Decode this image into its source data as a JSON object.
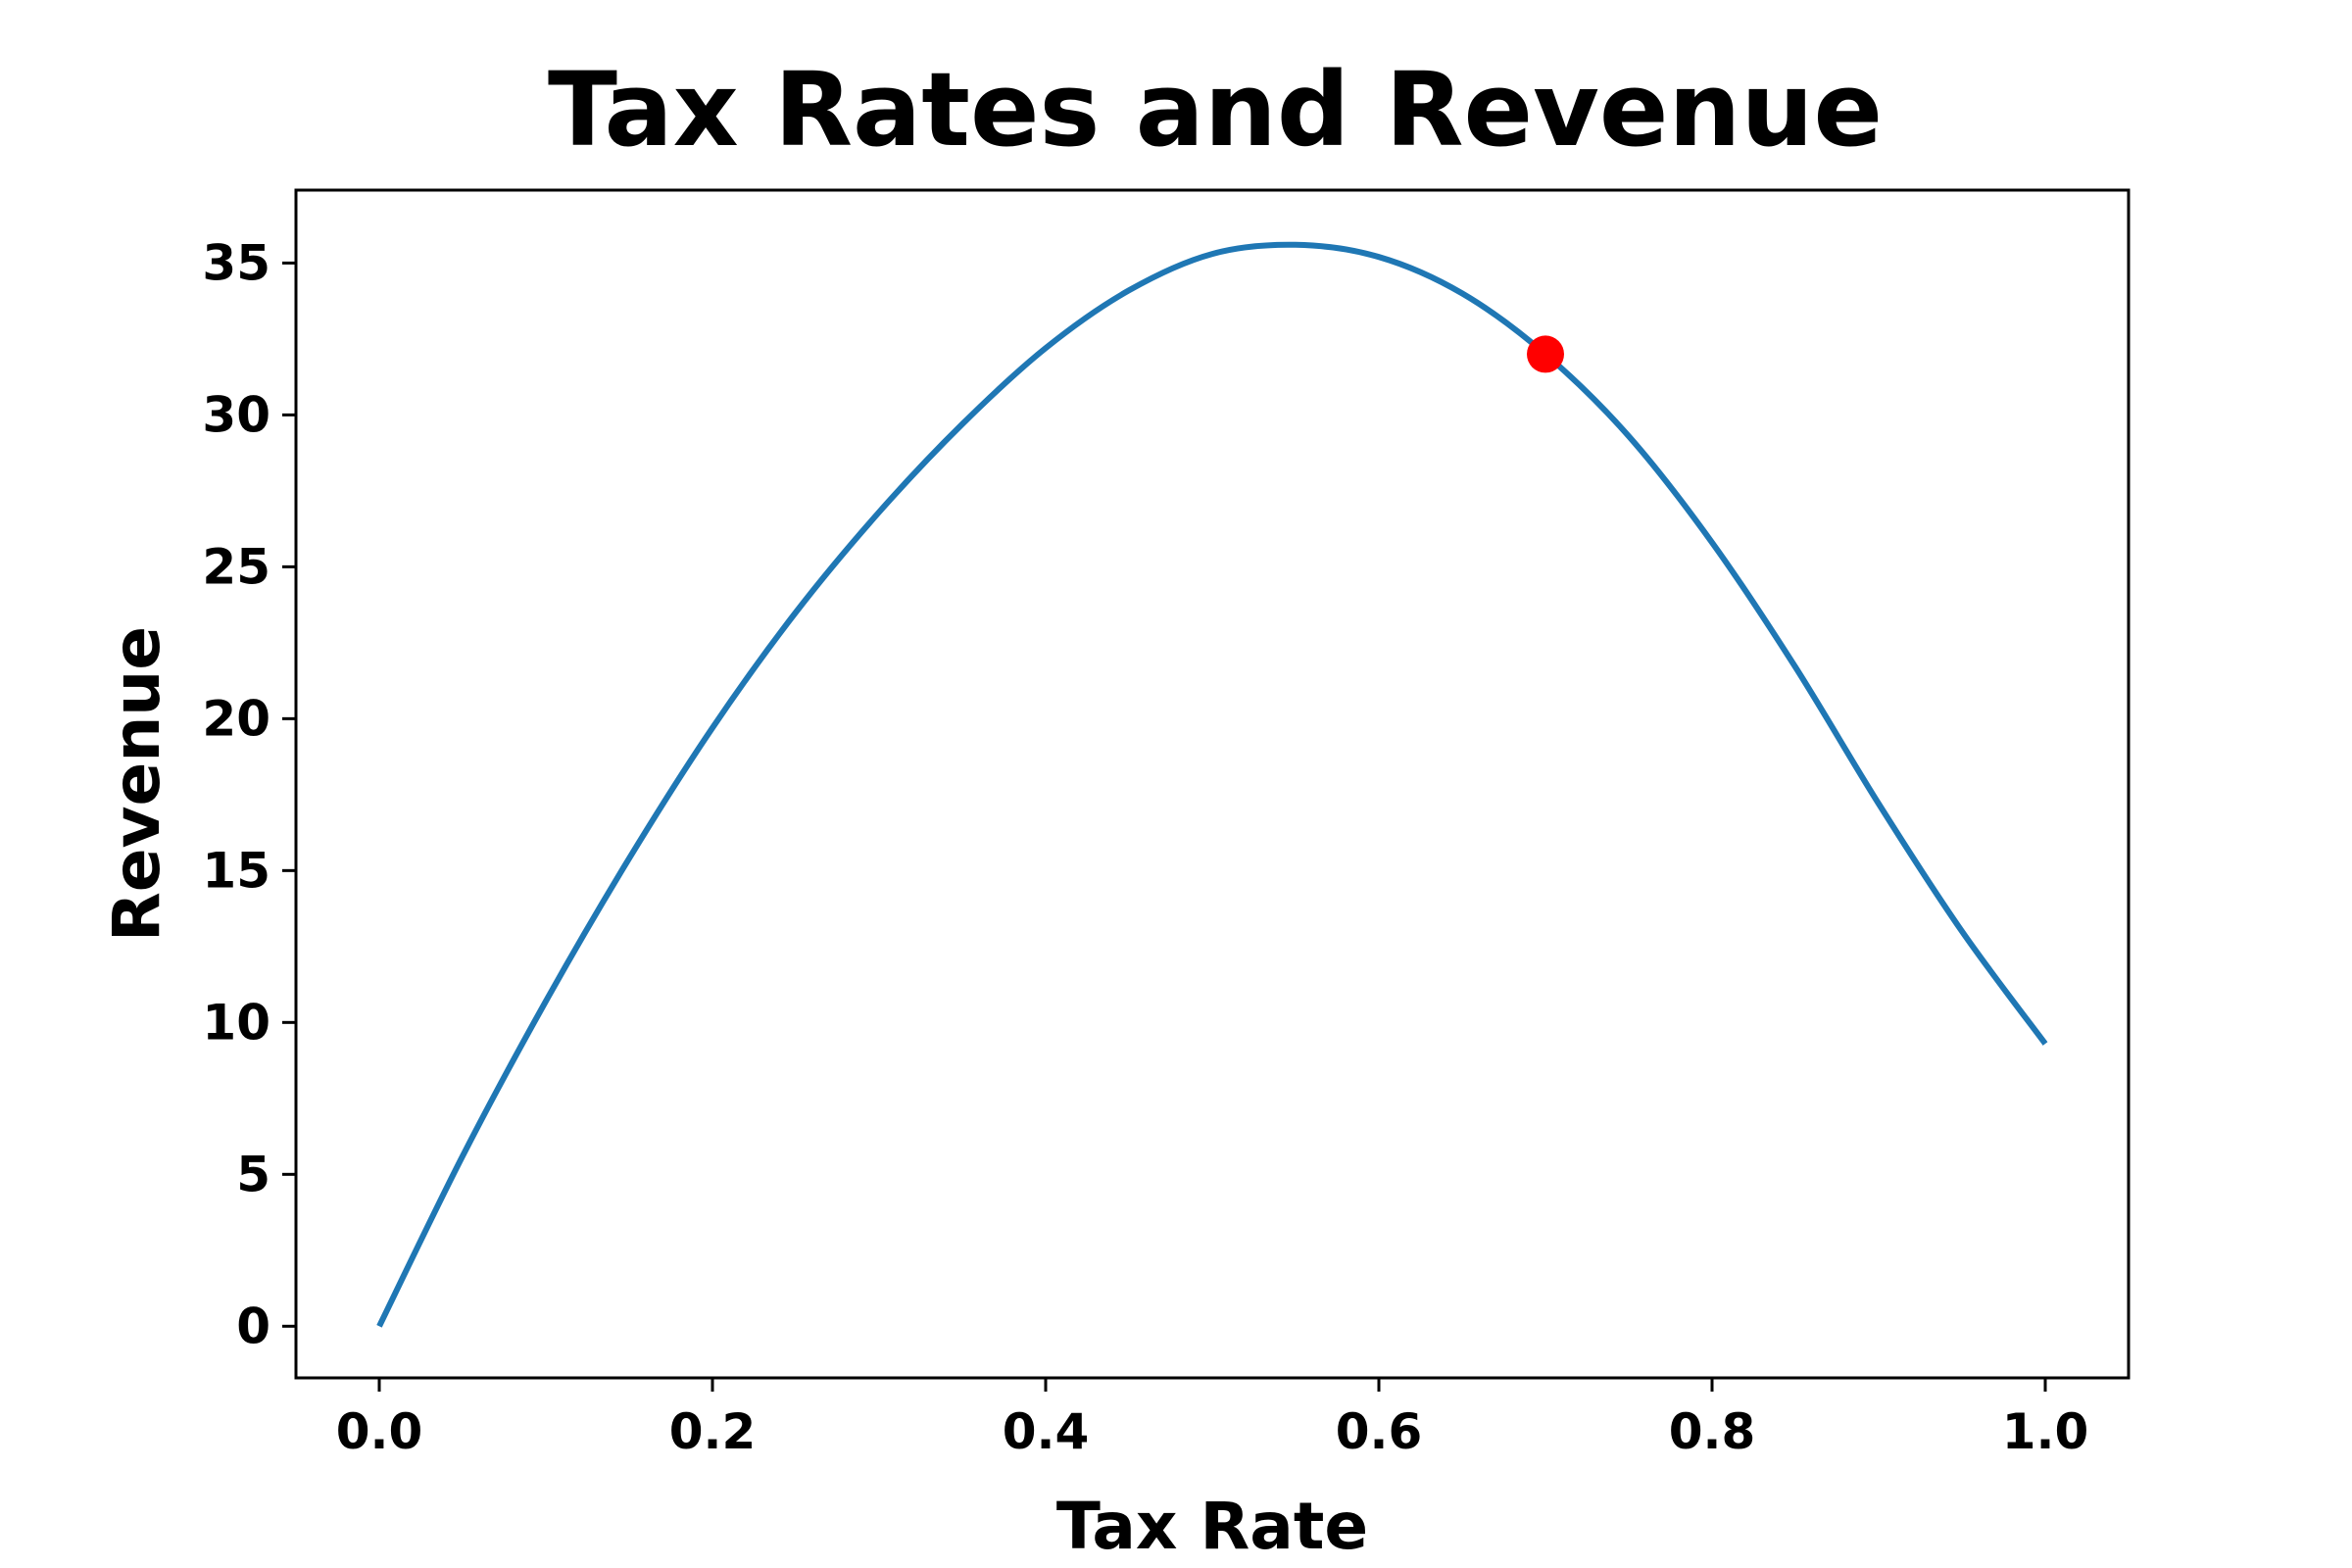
{
  "chart_data": {
    "type": "line",
    "title": "Tax Rates and Revenue",
    "xlabel": "Tax Rate",
    "ylabel": "Revenue",
    "xlim": [
      -0.05,
      1.05
    ],
    "ylim": [
      -1.7,
      37.4
    ],
    "x_ticks": [
      0.0,
      0.2,
      0.4,
      0.6,
      0.8,
      1.0
    ],
    "x_tick_labels": [
      "0.0",
      "0.2",
      "0.4",
      "0.6",
      "0.8",
      "1.0"
    ],
    "y_ticks": [
      0,
      5,
      10,
      15,
      20,
      25,
      30,
      35
    ],
    "y_tick_labels": [
      "0",
      "5",
      "10",
      "15",
      "20",
      "25",
      "30",
      "35"
    ],
    "grid": false,
    "series": [
      {
        "color": "#1f77b4",
        "x": [
          0.0,
          0.05,
          0.1,
          0.15,
          0.2,
          0.25,
          0.3,
          0.35,
          0.4,
          0.45,
          0.5,
          0.55,
          0.6,
          0.65,
          0.7,
          0.75,
          0.8,
          0.85,
          0.9,
          0.95,
          1.0
        ],
        "y": [
          0.0,
          5.6,
          10.7,
          15.4,
          19.7,
          23.5,
          26.8,
          29.7,
          32.2,
          34.1,
          35.3,
          35.6,
          35.2,
          34.0,
          32.0,
          29.3,
          25.8,
          21.7,
          17.2,
          13.0,
          9.3
        ]
      }
    ],
    "highlight_point": {
      "x": 0.7,
      "y": 32.0,
      "color": "#ff0000"
    }
  }
}
